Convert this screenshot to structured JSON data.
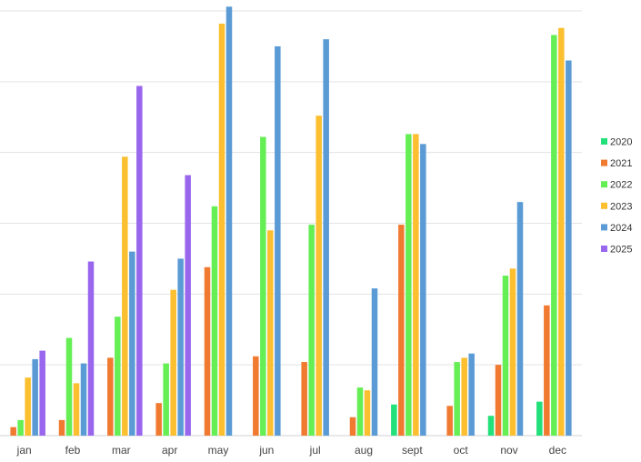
{
  "chart_data": {
    "type": "bar",
    "categories": [
      "jan",
      "feb",
      "mar",
      "apr",
      "may",
      "jun",
      "jul",
      "aug",
      "sept",
      "oct",
      "nov",
      "dec"
    ],
    "ylim": [
      0,
      30
    ],
    "grid": true,
    "legend_position": "right",
    "series": [
      {
        "name": "2020",
        "color": "#22e07a",
        "values": [
          0,
          0,
          0,
          0,
          0,
          0,
          0,
          0,
          2.2,
          0,
          1.4,
          2.4
        ]
      },
      {
        "name": "2021",
        "color": "#f07a30",
        "values": [
          0.6,
          1.1,
          5.5,
          2.3,
          11.9,
          5.6,
          5.2,
          1.3,
          14.9,
          2.1,
          5.0,
          9.2
        ]
      },
      {
        "name": "2022",
        "color": "#66ee55",
        "values": [
          1.1,
          6.9,
          8.4,
          5.1,
          16.2,
          21.1,
          14.9,
          3.4,
          21.3,
          5.2,
          11.3,
          28.3
        ]
      },
      {
        "name": "2023",
        "color": "#fbbf2f",
        "values": [
          4.1,
          3.7,
          19.7,
          10.3,
          29.1,
          14.5,
          22.6,
          3.2,
          21.3,
          5.5,
          11.8,
          28.8
        ]
      },
      {
        "name": "2024",
        "color": "#5b9bd5",
        "values": [
          5.4,
          5.1,
          13.0,
          12.5,
          30.3,
          27.5,
          28.0,
          10.4,
          20.6,
          5.8,
          16.5,
          26.5
        ]
      },
      {
        "name": "2025",
        "color": "#9966ee",
        "values": [
          6.0,
          12.3,
          24.7,
          18.4,
          0,
          0,
          0,
          0,
          0,
          0,
          0,
          0
        ]
      }
    ]
  }
}
